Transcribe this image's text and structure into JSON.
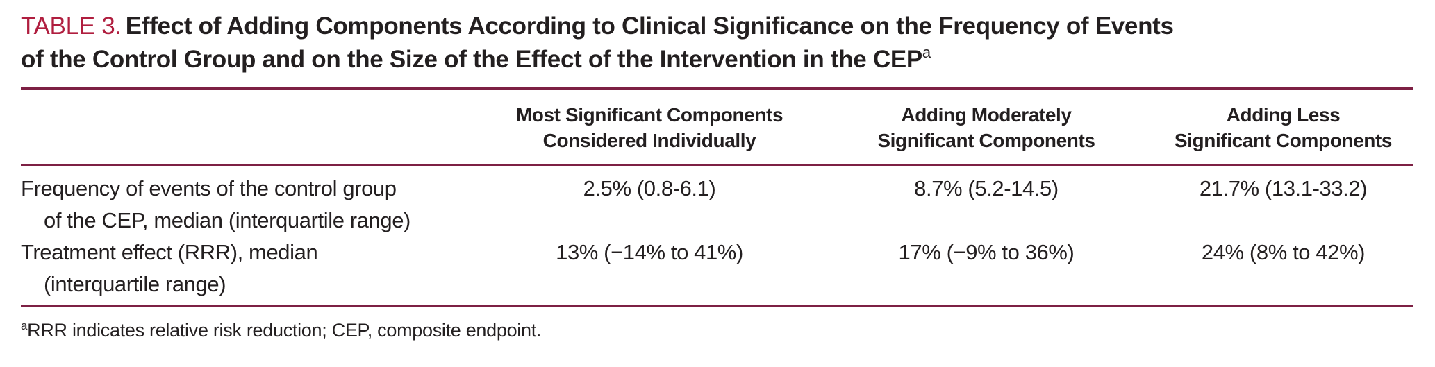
{
  "caption": {
    "label": "TABLE 3.",
    "title_line1": "Effect of Adding Components According to Clinical Significance on the Frequency of Events",
    "title_line2": "of the Control Group and on the Size of the Effect of the Intervention in the CEP",
    "title_superscript": "a"
  },
  "table": {
    "column_headers": [
      {
        "line1": "Most Significant Components",
        "line2": "Considered Individually"
      },
      {
        "line1": "Adding Moderately",
        "line2": "Significant Components"
      },
      {
        "line1": "Adding Less",
        "line2": "Significant Components"
      }
    ],
    "rows": [
      {
        "label_line1": "Frequency of events of the control group",
        "label_line2": "of the CEP, median (interquartile range)",
        "values": [
          "2.5% (0.8-6.1)",
          "8.7% (5.2-14.5)",
          "21.7% (13.1-33.2)"
        ]
      },
      {
        "label_line1": "Treatment effect (RRR), median",
        "label_line2": "(interquartile range)",
        "values": [
          "13% (−14% to 41%)",
          "17% (−9% to 36%)",
          "24% (8% to 42%)"
        ]
      }
    ]
  },
  "footnote": {
    "marker": "a",
    "text": "RRR indicates relative risk reduction; CEP, composite endpoint."
  },
  "colors": {
    "caption_label_red": "#b01e3f",
    "rule_maroon": "#7d2044",
    "text_black": "#231f20"
  }
}
